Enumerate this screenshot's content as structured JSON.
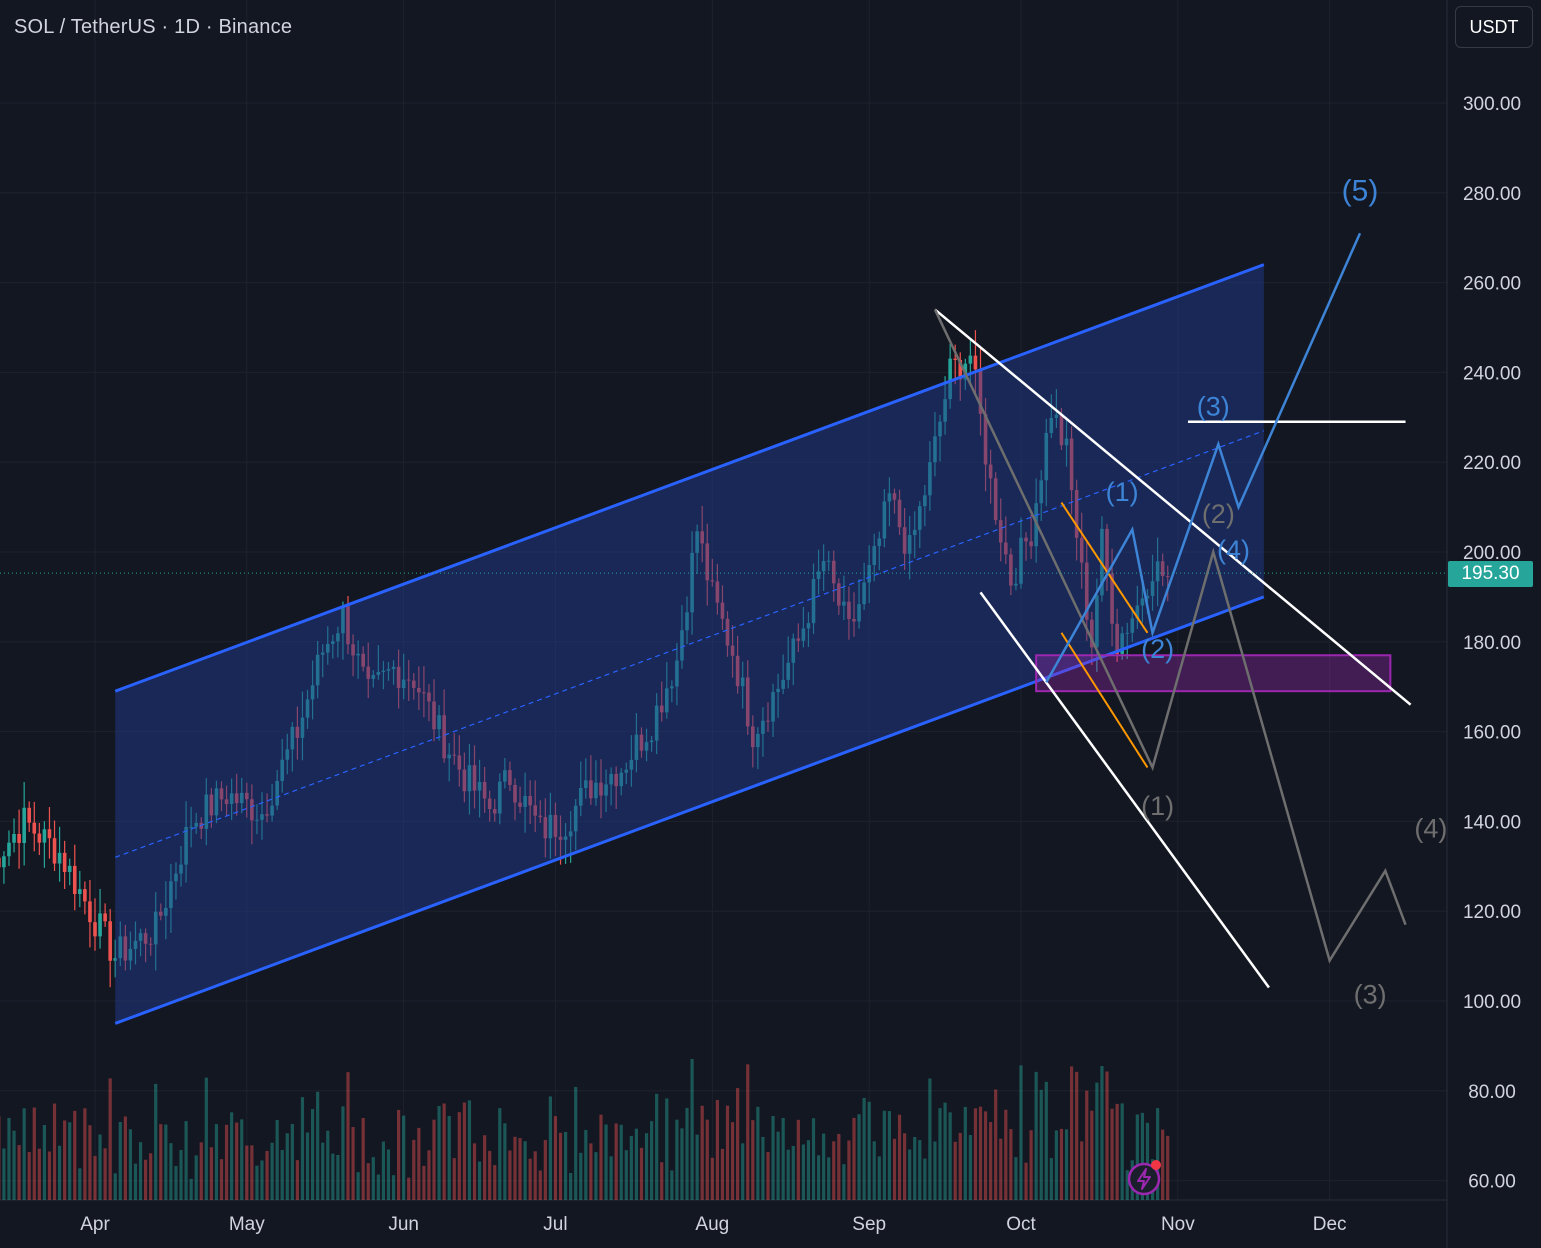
{
  "header": {
    "symbol_title": "SOL / TetherUS · 1D · Binance"
  },
  "toolbar": {
    "currency_label": "USDT"
  },
  "last_price_label": "195.30",
  "chart_data": {
    "type": "candlestick",
    "title": "SOL / TetherUS · 1D · Binance",
    "price_axis": {
      "ticks": [
        "300.00",
        "280.00",
        "260.00",
        "240.00",
        "220.00",
        "200.00",
        "180.00",
        "160.00",
        "140.00",
        "120.00",
        "100.00",
        "80.00",
        "60.00"
      ],
      "ylim": [
        56,
        322
      ]
    },
    "time_axis": {
      "ticks": [
        "Apr",
        "May",
        "Jun",
        "Jul",
        "Aug",
        "Sep",
        "Oct",
        "Nov",
        "Dec"
      ]
    },
    "last_price": 195.3,
    "grid": true,
    "colors": {
      "up": "#26a69a",
      "down": "#ef5350",
      "channel": "#2962ff",
      "channel_fill": "#1f3a8a",
      "white_lines": "#ffffff",
      "orange_lines": "#ff9800",
      "projection_blue": "#3d84d6",
      "projection_gray": "#6e6e6e",
      "support_zone": "#9c27b0"
    },
    "close_path": [
      [
        "Mar 11",
        130
      ],
      [
        "Mar 18",
        140
      ],
      [
        "Mar 25",
        133
      ],
      [
        "Apr 1",
        118
      ],
      [
        "Apr 5",
        110
      ],
      [
        "Apr 13",
        116
      ],
      [
        "Apr 20",
        140
      ],
      [
        "Apr 27",
        146
      ],
      [
        "May 4",
        142
      ],
      [
        "May 11",
        160
      ],
      [
        "May 16",
        178
      ],
      [
        "May 20",
        186
      ],
      [
        "May 25",
        168
      ],
      [
        "May 30",
        174
      ],
      [
        "Jun 3",
        172
      ],
      [
        "Jun 8",
        160
      ],
      [
        "Jun 13",
        150
      ],
      [
        "Jun 18",
        143
      ],
      [
        "Jun 22",
        150
      ],
      [
        "Jun 28",
        138
      ],
      [
        "Jul 3",
        140
      ],
      [
        "Jul 8",
        148
      ],
      [
        "Jul 14",
        152
      ],
      [
        "Jul 20",
        162
      ],
      [
        "Jul 25",
        176
      ],
      [
        "Jul 29",
        205
      ],
      [
        "Aug 1",
        190
      ],
      [
        "Aug 5",
        178
      ],
      [
        "Aug 9",
        160
      ],
      [
        "Aug 14",
        170
      ],
      [
        "Aug 18",
        180
      ],
      [
        "Aug 23",
        198
      ],
      [
        "Aug 28",
        182
      ],
      [
        "Sep 2",
        198
      ],
      [
        "Sep 5",
        212
      ],
      [
        "Sep 9",
        200
      ],
      [
        "Sep 13",
        218
      ],
      [
        "Sep 17",
        240
      ],
      [
        "Sep 21",
        244
      ],
      [
        "Sep 25",
        215
      ],
      [
        "Sep 29",
        194
      ],
      [
        "Oct 3",
        205
      ],
      [
        "Oct 7",
        232
      ],
      [
        "Oct 10",
        222
      ],
      [
        "Oct 13",
        195
      ],
      [
        "Oct 15",
        180
      ],
      [
        "Oct 17",
        202
      ],
      [
        "Oct 20",
        180
      ],
      [
        "Oct 24",
        188
      ],
      [
        "Oct 27",
        197
      ],
      [
        "Oct 30",
        194
      ]
    ],
    "annotations": [
      {
        "label": "(5)",
        "series": "projection_blue"
      },
      {
        "label": "(3)",
        "series": "projection_blue"
      },
      {
        "label": "(1)",
        "series": "projection_blue"
      },
      {
        "label": "(4)",
        "series": "projection_blue"
      },
      {
        "label": "(2)",
        "series": "projection_blue"
      },
      {
        "label": "(2)",
        "series": "projection_gray"
      },
      {
        "label": "(1)",
        "series": "projection_gray"
      },
      {
        "label": "(4)",
        "series": "projection_gray"
      },
      {
        "label": "(3)",
        "series": "projection_gray"
      }
    ]
  }
}
